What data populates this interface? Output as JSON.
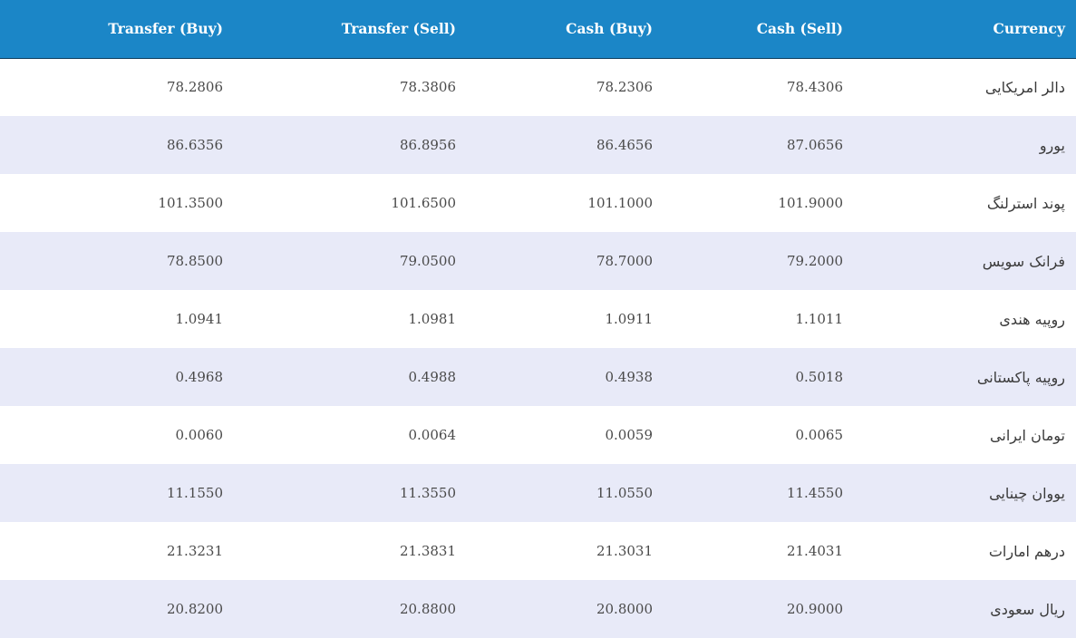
{
  "table": {
    "headers": {
      "transfer_buy": "Transfer (Buy)",
      "transfer_sell": "Transfer (Sell)",
      "cash_buy": "Cash (Buy)",
      "cash_sell": "Cash (Sell)",
      "currency": "Currency"
    },
    "rows": [
      {
        "transfer_buy": "78.2806",
        "transfer_sell": "78.3806",
        "cash_buy": "78.2306",
        "cash_sell": "78.4306",
        "currency": "دالر امریکایی"
      },
      {
        "transfer_buy": "86.6356",
        "transfer_sell": "86.8956",
        "cash_buy": "86.4656",
        "cash_sell": "87.0656",
        "currency": "یورو"
      },
      {
        "transfer_buy": "101.3500",
        "transfer_sell": "101.6500",
        "cash_buy": "101.1000",
        "cash_sell": "101.9000",
        "currency": "پوند استرلنگ"
      },
      {
        "transfer_buy": "78.8500",
        "transfer_sell": "79.0500",
        "cash_buy": "78.7000",
        "cash_sell": "79.2000",
        "currency": "فرانک سویس"
      },
      {
        "transfer_buy": "1.0941",
        "transfer_sell": "1.0981",
        "cash_buy": "1.0911",
        "cash_sell": "1.1011",
        "currency": "روپیه هندی"
      },
      {
        "transfer_buy": "0.4968",
        "transfer_sell": "0.4988",
        "cash_buy": "0.4938",
        "cash_sell": "0.5018",
        "currency": "روپیه پاکستانی"
      },
      {
        "transfer_buy": "0.0060",
        "transfer_sell": "0.0064",
        "cash_buy": "0.0059",
        "cash_sell": "0.0065",
        "currency": "تومان ایرانی"
      },
      {
        "transfer_buy": "11.1550",
        "transfer_sell": "11.3550",
        "cash_buy": "11.0550",
        "cash_sell": "11.4550",
        "currency": "یووان چینایی"
      },
      {
        "transfer_buy": "21.3231",
        "transfer_sell": "21.3831",
        "cash_buy": "21.3031",
        "cash_sell": "21.4031",
        "currency": "درهم امارات"
      },
      {
        "transfer_buy": "20.8200",
        "transfer_sell": "20.8800",
        "cash_buy": "20.8000",
        "cash_sell": "20.9000",
        "currency": "ریال سعودی"
      }
    ]
  },
  "colors": {
    "header_bg": "#1b86c7",
    "header_text": "#ffffff",
    "row_alt_bg": "#e8eaf8",
    "row_bg": "#ffffff",
    "cell_text": "#4a4a4a"
  }
}
